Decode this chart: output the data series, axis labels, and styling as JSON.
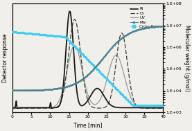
{
  "xlabel": "Time [min]",
  "ylabel_left": "Detector response",
  "ylabel_right": "Molecular weight (g/mol)",
  "xlim": [
    0,
    40
  ],
  "xticks": [
    0,
    5,
    10,
    15,
    20,
    25,
    30,
    35,
    40
  ],
  "ylim_right": [
    1000.0,
    100000000.0
  ],
  "colors": {
    "RI": "#1a1a1a",
    "LS": "#3a3a3a",
    "UV": "#999999",
    "Mw": "#4a7f8f",
    "cross_flow": "#44ccee"
  },
  "background_color": "#f0efea"
}
